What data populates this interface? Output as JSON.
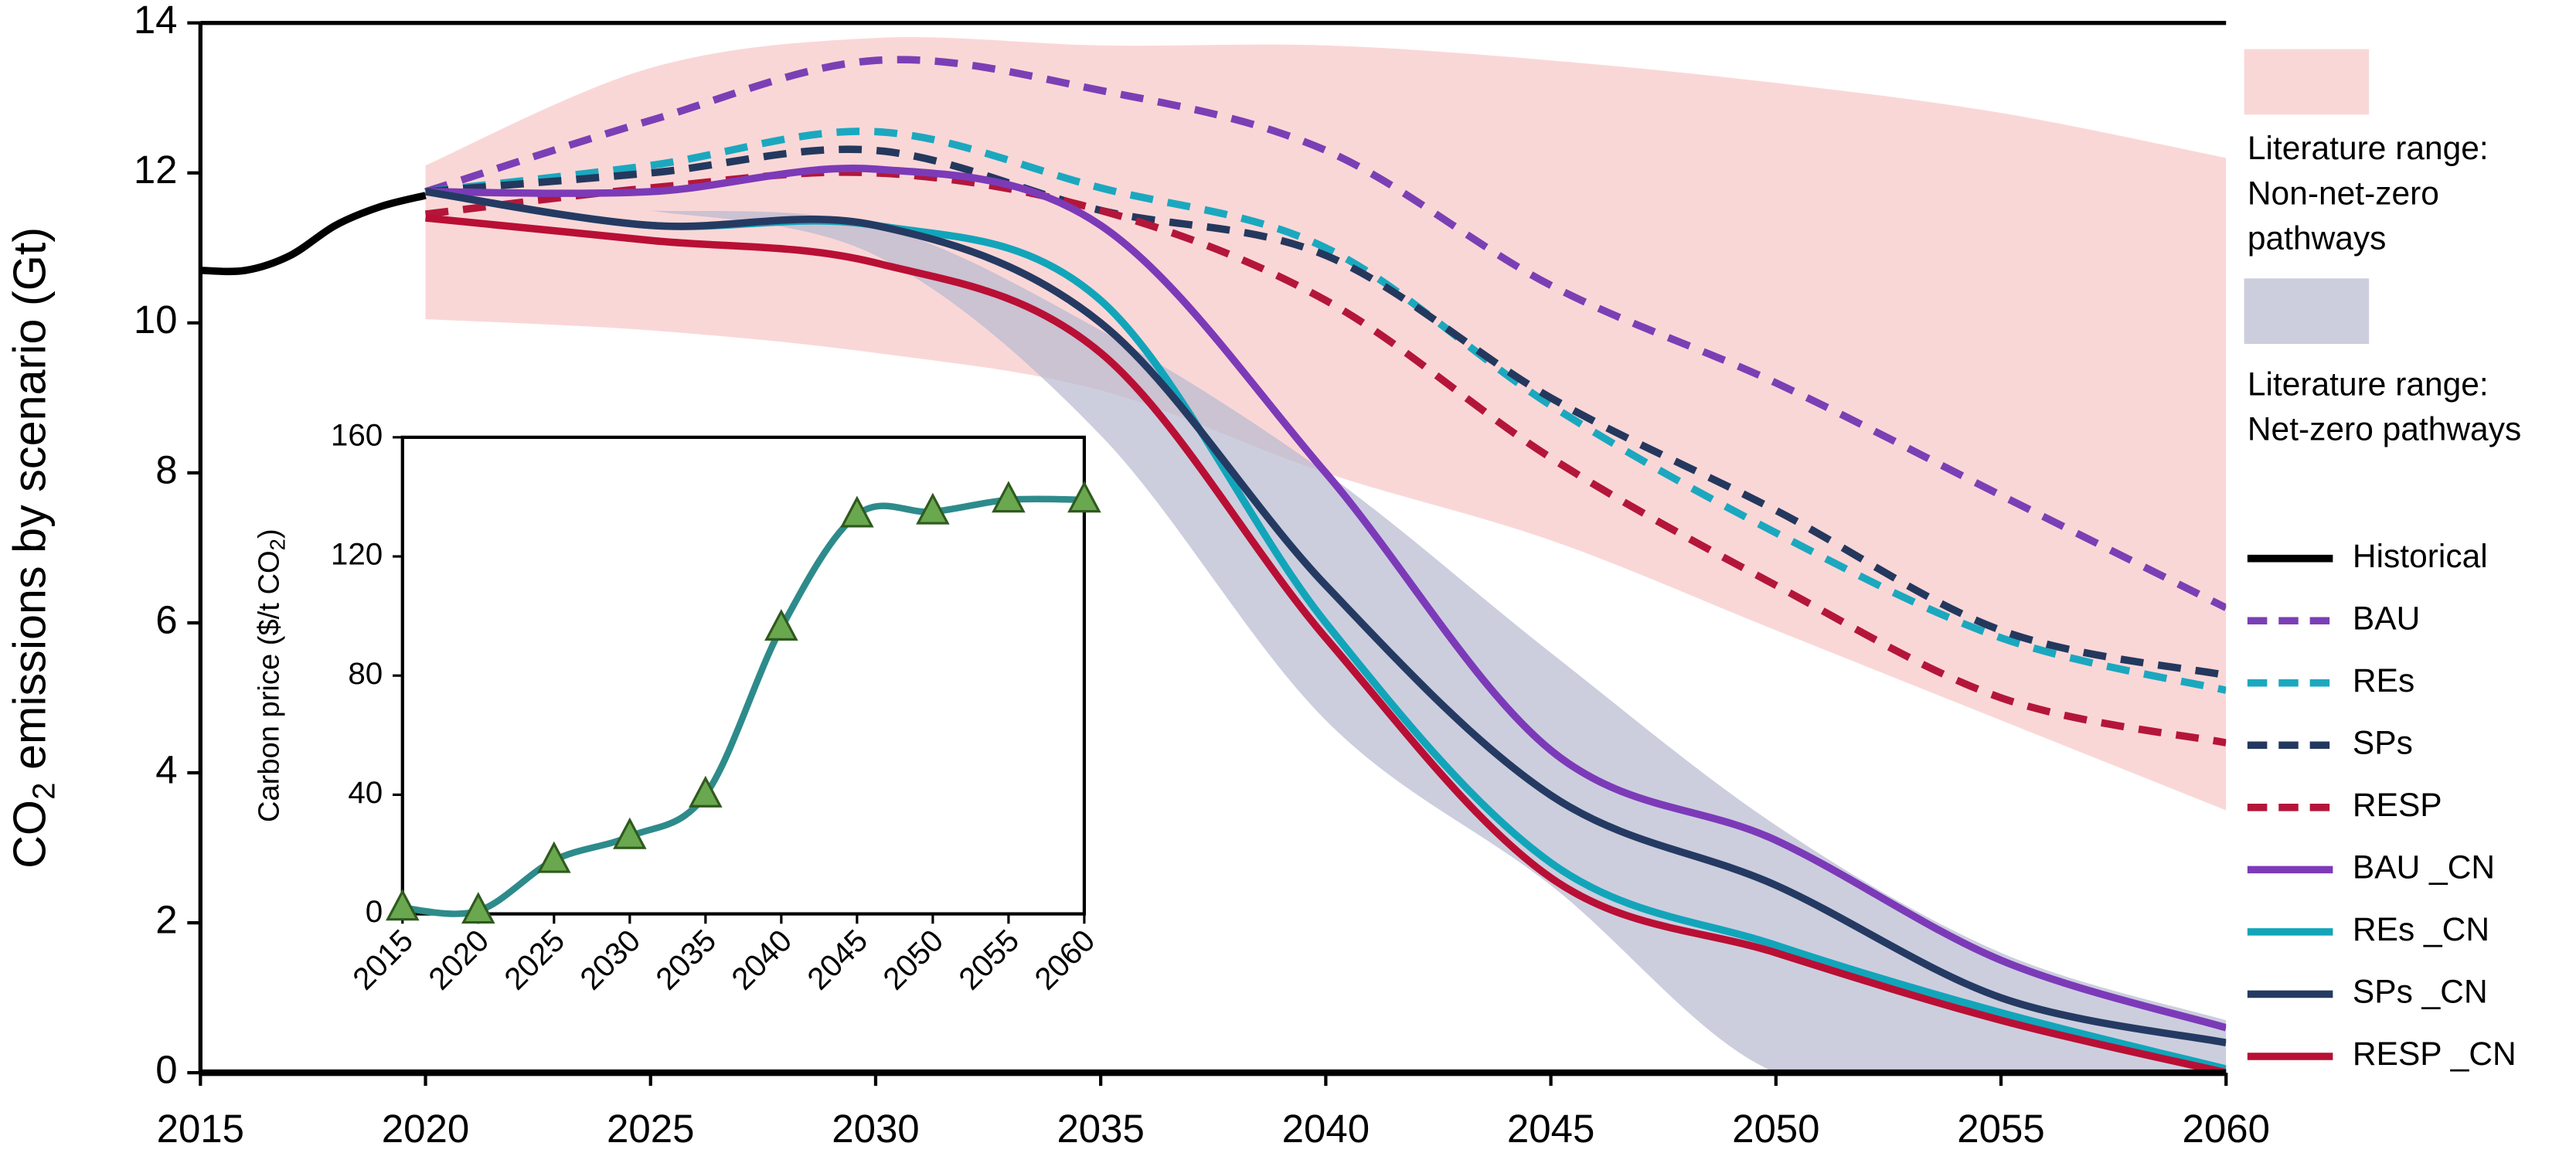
{
  "chart_data": [
    {
      "type": "line",
      "y_label": [
        "CO",
        "2",
        " emissions by scenario (Gt)"
      ],
      "xlim": [
        2015,
        2060
      ],
      "xticks": [
        2015,
        2020,
        2025,
        2030,
        2035,
        2040,
        2045,
        2050,
        2055,
        2060
      ],
      "ylim": [
        0,
        14
      ],
      "yticks": [
        0,
        2,
        4,
        6,
        8,
        10,
        12,
        14
      ],
      "ranges": [
        {
          "name_lines": [
            "Literature range:",
            "Non-net-zero",
            "pathways"
          ],
          "color": "#f9d0d0",
          "x": [
            2020,
            2025,
            2030,
            2035,
            2040,
            2045,
            2050,
            2055,
            2060
          ],
          "upper": [
            12.1,
            13.4,
            13.8,
            13.7,
            13.7,
            13.5,
            13.2,
            12.8,
            12.2
          ],
          "lower": [
            10.05,
            9.9,
            9.6,
            9.1,
            8.0,
            7.1,
            5.9,
            4.7,
            3.5
          ]
        },
        {
          "name_lines": [
            "Literature range:",
            "Net-zero pathways"
          ],
          "color": "#b7b9d0",
          "x": [
            2025,
            2030,
            2035,
            2040,
            2045,
            2050,
            2055,
            2060
          ],
          "upper": [
            11.5,
            11.3,
            9.9,
            8.0,
            5.6,
            3.3,
            1.6,
            0.7
          ],
          "lower": [
            11.5,
            10.9,
            8.5,
            4.7,
            2.5,
            0,
            0,
            0
          ]
        }
      ],
      "series": [
        {
          "name": "Historical",
          "color": "#000000",
          "dash": false,
          "x": [
            2015,
            2016,
            2017,
            2018,
            2019,
            2020
          ],
          "values": [
            10.7,
            10.7,
            10.9,
            11.3,
            11.55,
            11.7
          ]
        },
        {
          "name": "BAU",
          "color": "#7b3fb5",
          "dash": true,
          "x": [
            2020,
            2025,
            2030,
            2035,
            2040,
            2045,
            2050,
            2055,
            2060
          ],
          "values": [
            11.75,
            12.7,
            13.5,
            13.1,
            12.3,
            10.5,
            9.2,
            7.7,
            6.2
          ]
        },
        {
          "name": "REs",
          "color": "#1ba8bf",
          "dash": true,
          "x": [
            2020,
            2025,
            2030,
            2035,
            2040,
            2045,
            2050,
            2055,
            2060
          ],
          "values": [
            11.75,
            12.1,
            12.55,
            11.8,
            11.0,
            8.9,
            7.2,
            5.8,
            5.1
          ]
        },
        {
          "name": "SPs",
          "color": "#24385e",
          "dash": true,
          "x": [
            2020,
            2025,
            2030,
            2035,
            2040,
            2045,
            2050,
            2055,
            2060
          ],
          "values": [
            11.75,
            12.0,
            12.3,
            11.5,
            10.9,
            9.0,
            7.5,
            5.9,
            5.3
          ]
        },
        {
          "name": "RESP",
          "color": "#b4163a",
          "dash": true,
          "x": [
            2020,
            2025,
            2030,
            2035,
            2040,
            2045,
            2050,
            2055,
            2060
          ],
          "values": [
            11.45,
            11.8,
            12.0,
            11.5,
            10.3,
            8.2,
            6.5,
            5.0,
            4.4
          ]
        },
        {
          "name": "BAU _CN",
          "color": "#7c3ab8",
          "dash": false,
          "x": [
            2020,
            2025,
            2030,
            2035,
            2040,
            2045,
            2050,
            2055,
            2060
          ],
          "values": [
            11.75,
            11.75,
            12.05,
            11.3,
            8.0,
            4.3,
            3.1,
            1.5,
            0.6
          ]
        },
        {
          "name": "REs _CN",
          "color": "#12a5ba",
          "dash": false,
          "x": [
            2020,
            2025,
            2030,
            2035,
            2040,
            2045,
            2050,
            2055,
            2060
          ],
          "values": [
            11.75,
            11.3,
            11.3,
            10.3,
            6.0,
            2.8,
            1.7,
            0.8,
            0.05
          ]
        },
        {
          "name": "SPs _CN",
          "color": "#253a62",
          "dash": false,
          "x": [
            2020,
            2025,
            2030,
            2035,
            2040,
            2045,
            2050,
            2055,
            2060
          ],
          "values": [
            11.75,
            11.3,
            11.3,
            10.0,
            6.5,
            3.7,
            2.5,
            1.0,
            0.4
          ]
        },
        {
          "name": "RESP _CN",
          "color": "#b90f35",
          "dash": false,
          "x": [
            2020,
            2025,
            2030,
            2035,
            2040,
            2045,
            2050,
            2055,
            2060
          ],
          "values": [
            11.4,
            11.1,
            10.8,
            9.6,
            5.8,
            2.6,
            1.6,
            0.7,
            0.0
          ]
        }
      ]
    },
    {
      "type": "line",
      "y_label": [
        "Carbon price ($/t CO",
        "2",
        ")"
      ],
      "xlim": [
        2015,
        2060
      ],
      "xticks": [
        2015,
        2020,
        2025,
        2030,
        2035,
        2040,
        2045,
        2050,
        2055,
        2060
      ],
      "ylim": [
        0,
        160
      ],
      "yticks": [
        0,
        40,
        80,
        120,
        160
      ],
      "color": "#2e8b8b",
      "marker_color": "#6aa84f",
      "x": [
        2015,
        2020,
        2025,
        2030,
        2035,
        2040,
        2045,
        2050,
        2055,
        2060
      ],
      "values": [
        2,
        1,
        18,
        26,
        40,
        96,
        134,
        135,
        139,
        139
      ]
    }
  ]
}
